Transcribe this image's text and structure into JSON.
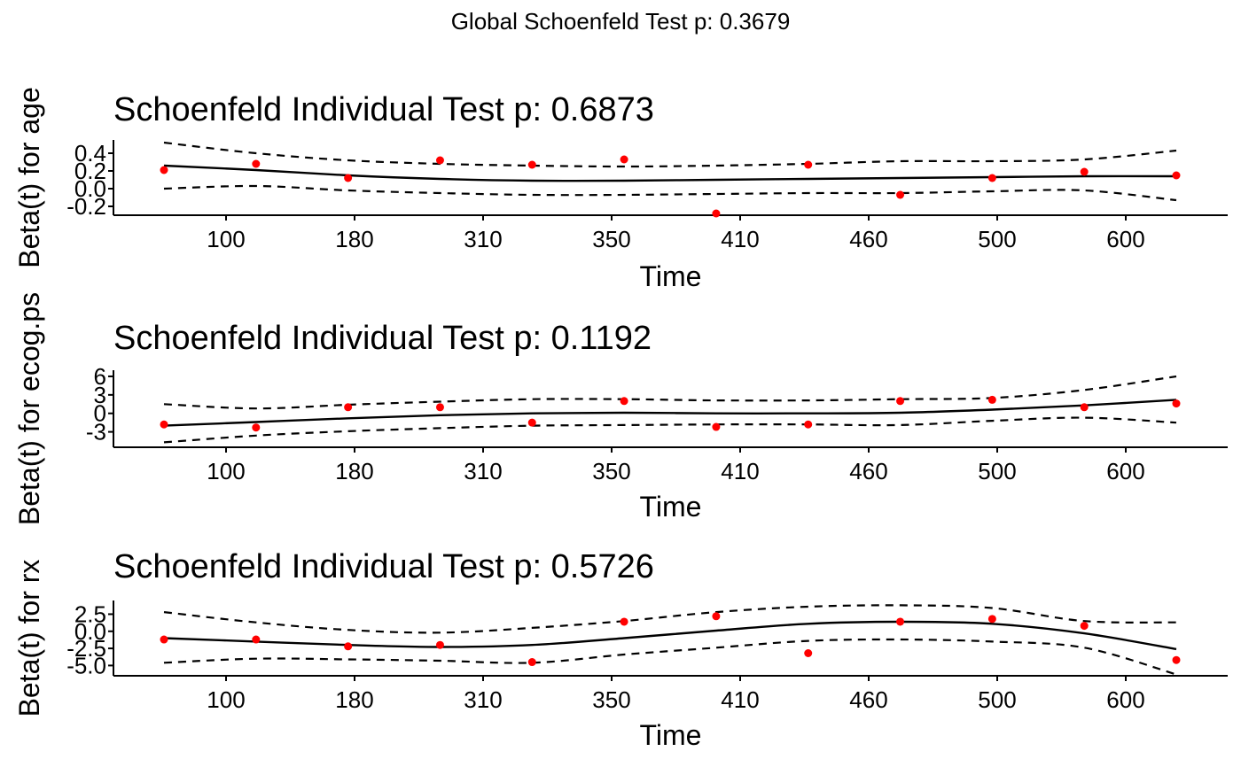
{
  "figure": {
    "suptitle": "Global Schoenfeld Test p: 0.3679"
  },
  "chart_data": [
    {
      "type": "scatter",
      "title": "Schoenfeld Individual Test p: 0.6873",
      "xlabel": "Time",
      "ylabel": "Beta(t) for age",
      "x_tick_labels": [
        "100",
        "180",
        "310",
        "350",
        "410",
        "460",
        "500",
        "600"
      ],
      "y_ticks": [
        -0.2,
        0.0,
        0.2,
        0.4
      ],
      "y_tick_labels": [
        "-0.2",
        "0.0",
        "0.2",
        "0.4"
      ],
      "ylim": [
        -0.3,
        0.55
      ],
      "x_positions": [
        1,
        2,
        3,
        4,
        5,
        6,
        7,
        8,
        9,
        10,
        11,
        12
      ],
      "points": [
        0.21,
        0.28,
        0.12,
        0.32,
        0.27,
        0.33,
        -0.28,
        0.27,
        -0.07,
        0.12,
        0.19,
        0.15
      ],
      "fit": [
        0.26,
        0.21,
        0.15,
        0.11,
        0.09,
        0.09,
        0.1,
        0.11,
        0.12,
        0.13,
        0.14,
        0.14
      ],
      "upper": [
        0.52,
        0.4,
        0.32,
        0.28,
        0.26,
        0.25,
        0.26,
        0.28,
        0.31,
        0.31,
        0.33,
        0.43
      ],
      "lower": [
        0.0,
        0.03,
        -0.02,
        -0.05,
        -0.07,
        -0.07,
        -0.06,
        -0.05,
        -0.05,
        -0.03,
        -0.02,
        -0.13
      ],
      "point_color": "#ff0000",
      "line_color": "#000000"
    },
    {
      "type": "scatter",
      "title": "Schoenfeld Individual Test p: 0.1192",
      "xlabel": "Time",
      "ylabel": "Beta(t) for ecog.ps",
      "x_tick_labels": [
        "100",
        "180",
        "310",
        "350",
        "410",
        "460",
        "500",
        "600"
      ],
      "y_ticks": [
        -3,
        0,
        3,
        6
      ],
      "y_tick_labels": [
        "-3",
        "0",
        "3",
        "6"
      ],
      "ylim": [
        -5.5,
        7
      ],
      "x_positions": [
        1,
        2,
        3,
        4,
        5,
        6,
        7,
        8,
        9,
        10,
        11,
        12
      ],
      "points": [
        -1.8,
        -2.3,
        1.0,
        1.0,
        -1.5,
        2.0,
        -2.2,
        -1.8,
        2.0,
        2.2,
        1.0,
        1.6
      ],
      "fit": [
        -2.0,
        -1.4,
        -0.8,
        -0.3,
        0.0,
        0.1,
        0.0,
        0.0,
        0.1,
        0.6,
        1.3,
        2.2
      ],
      "upper": [
        1.5,
        0.8,
        1.4,
        1.9,
        2.3,
        2.3,
        2.1,
        2.1,
        2.3,
        2.5,
        3.8,
        6.0
      ],
      "lower": [
        -4.7,
        -3.6,
        -2.9,
        -2.4,
        -2.0,
        -1.9,
        -1.8,
        -1.8,
        -1.9,
        -1.2,
        -0.7,
        -1.5
      ],
      "point_color": "#ff0000",
      "line_color": "#000000"
    },
    {
      "type": "scatter",
      "title": "Schoenfeld Individual Test p: 0.5726",
      "xlabel": "Time",
      "ylabel": "Beta(t) for rx",
      "x_tick_labels": [
        "100",
        "180",
        "310",
        "350",
        "410",
        "460",
        "500",
        "600"
      ],
      "y_ticks": [
        -5.0,
        -2.5,
        0.0,
        2.5
      ],
      "y_tick_labels": [
        "-5.0",
        "-2.5",
        "0.0",
        "2.5"
      ],
      "ylim": [
        -6.5,
        4.5
      ],
      "x_positions": [
        1,
        2,
        3,
        4,
        5,
        6,
        7,
        8,
        9,
        10,
        11,
        12
      ],
      "points": [
        -1.2,
        -1.2,
        -2.2,
        -2.0,
        -4.5,
        1.4,
        2.2,
        -3.2,
        1.4,
        1.8,
        0.8,
        -4.2
      ],
      "fit": [
        -1.0,
        -1.5,
        -2.0,
        -2.3,
        -2.0,
        -1.0,
        0.1,
        1.1,
        1.4,
        1.1,
        -0.3,
        -2.6
      ],
      "upper": [
        2.8,
        1.3,
        0.2,
        -0.2,
        0.5,
        1.5,
        2.8,
        3.6,
        3.8,
        3.4,
        1.5,
        1.3
      ],
      "lower": [
        -4.6,
        -4.0,
        -4.1,
        -4.3,
        -4.6,
        -3.4,
        -2.4,
        -1.4,
        -1.2,
        -1.5,
        -2.4,
        -6.3
      ],
      "point_color": "#ff0000",
      "line_color": "#000000"
    }
  ]
}
